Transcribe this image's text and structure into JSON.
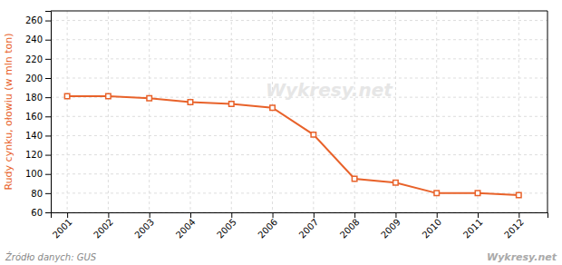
{
  "chart_data": {
    "type": "line",
    "y_label": "Rudy cynku, ołowiu (w mln ton)",
    "x": [
      2001,
      2002,
      2003,
      2004,
      2005,
      2006,
      2007,
      2008,
      2009,
      2010,
      2011,
      2012
    ],
    "values": [
      181,
      181,
      179,
      175,
      173,
      169,
      141,
      95,
      91,
      80,
      80,
      78
    ],
    "color": "#E8622A",
    "marker": "square",
    "line_style": "solid",
    "xlim": [
      2000.6,
      2012.7
    ],
    "xticks": [
      2001,
      2002,
      2003,
      2004,
      2005,
      2006,
      2007,
      2008,
      2009,
      2010,
      2011,
      2012
    ],
    "ylim": [
      60,
      270
    ],
    "yticks": [
      60,
      80,
      100,
      120,
      140,
      160,
      180,
      200,
      220,
      240,
      260
    ],
    "grid": true,
    "annotations": [
      "Wykresy.net",
      "Źródło danych:  GUS",
      "Wykresy.net"
    ]
  }
}
